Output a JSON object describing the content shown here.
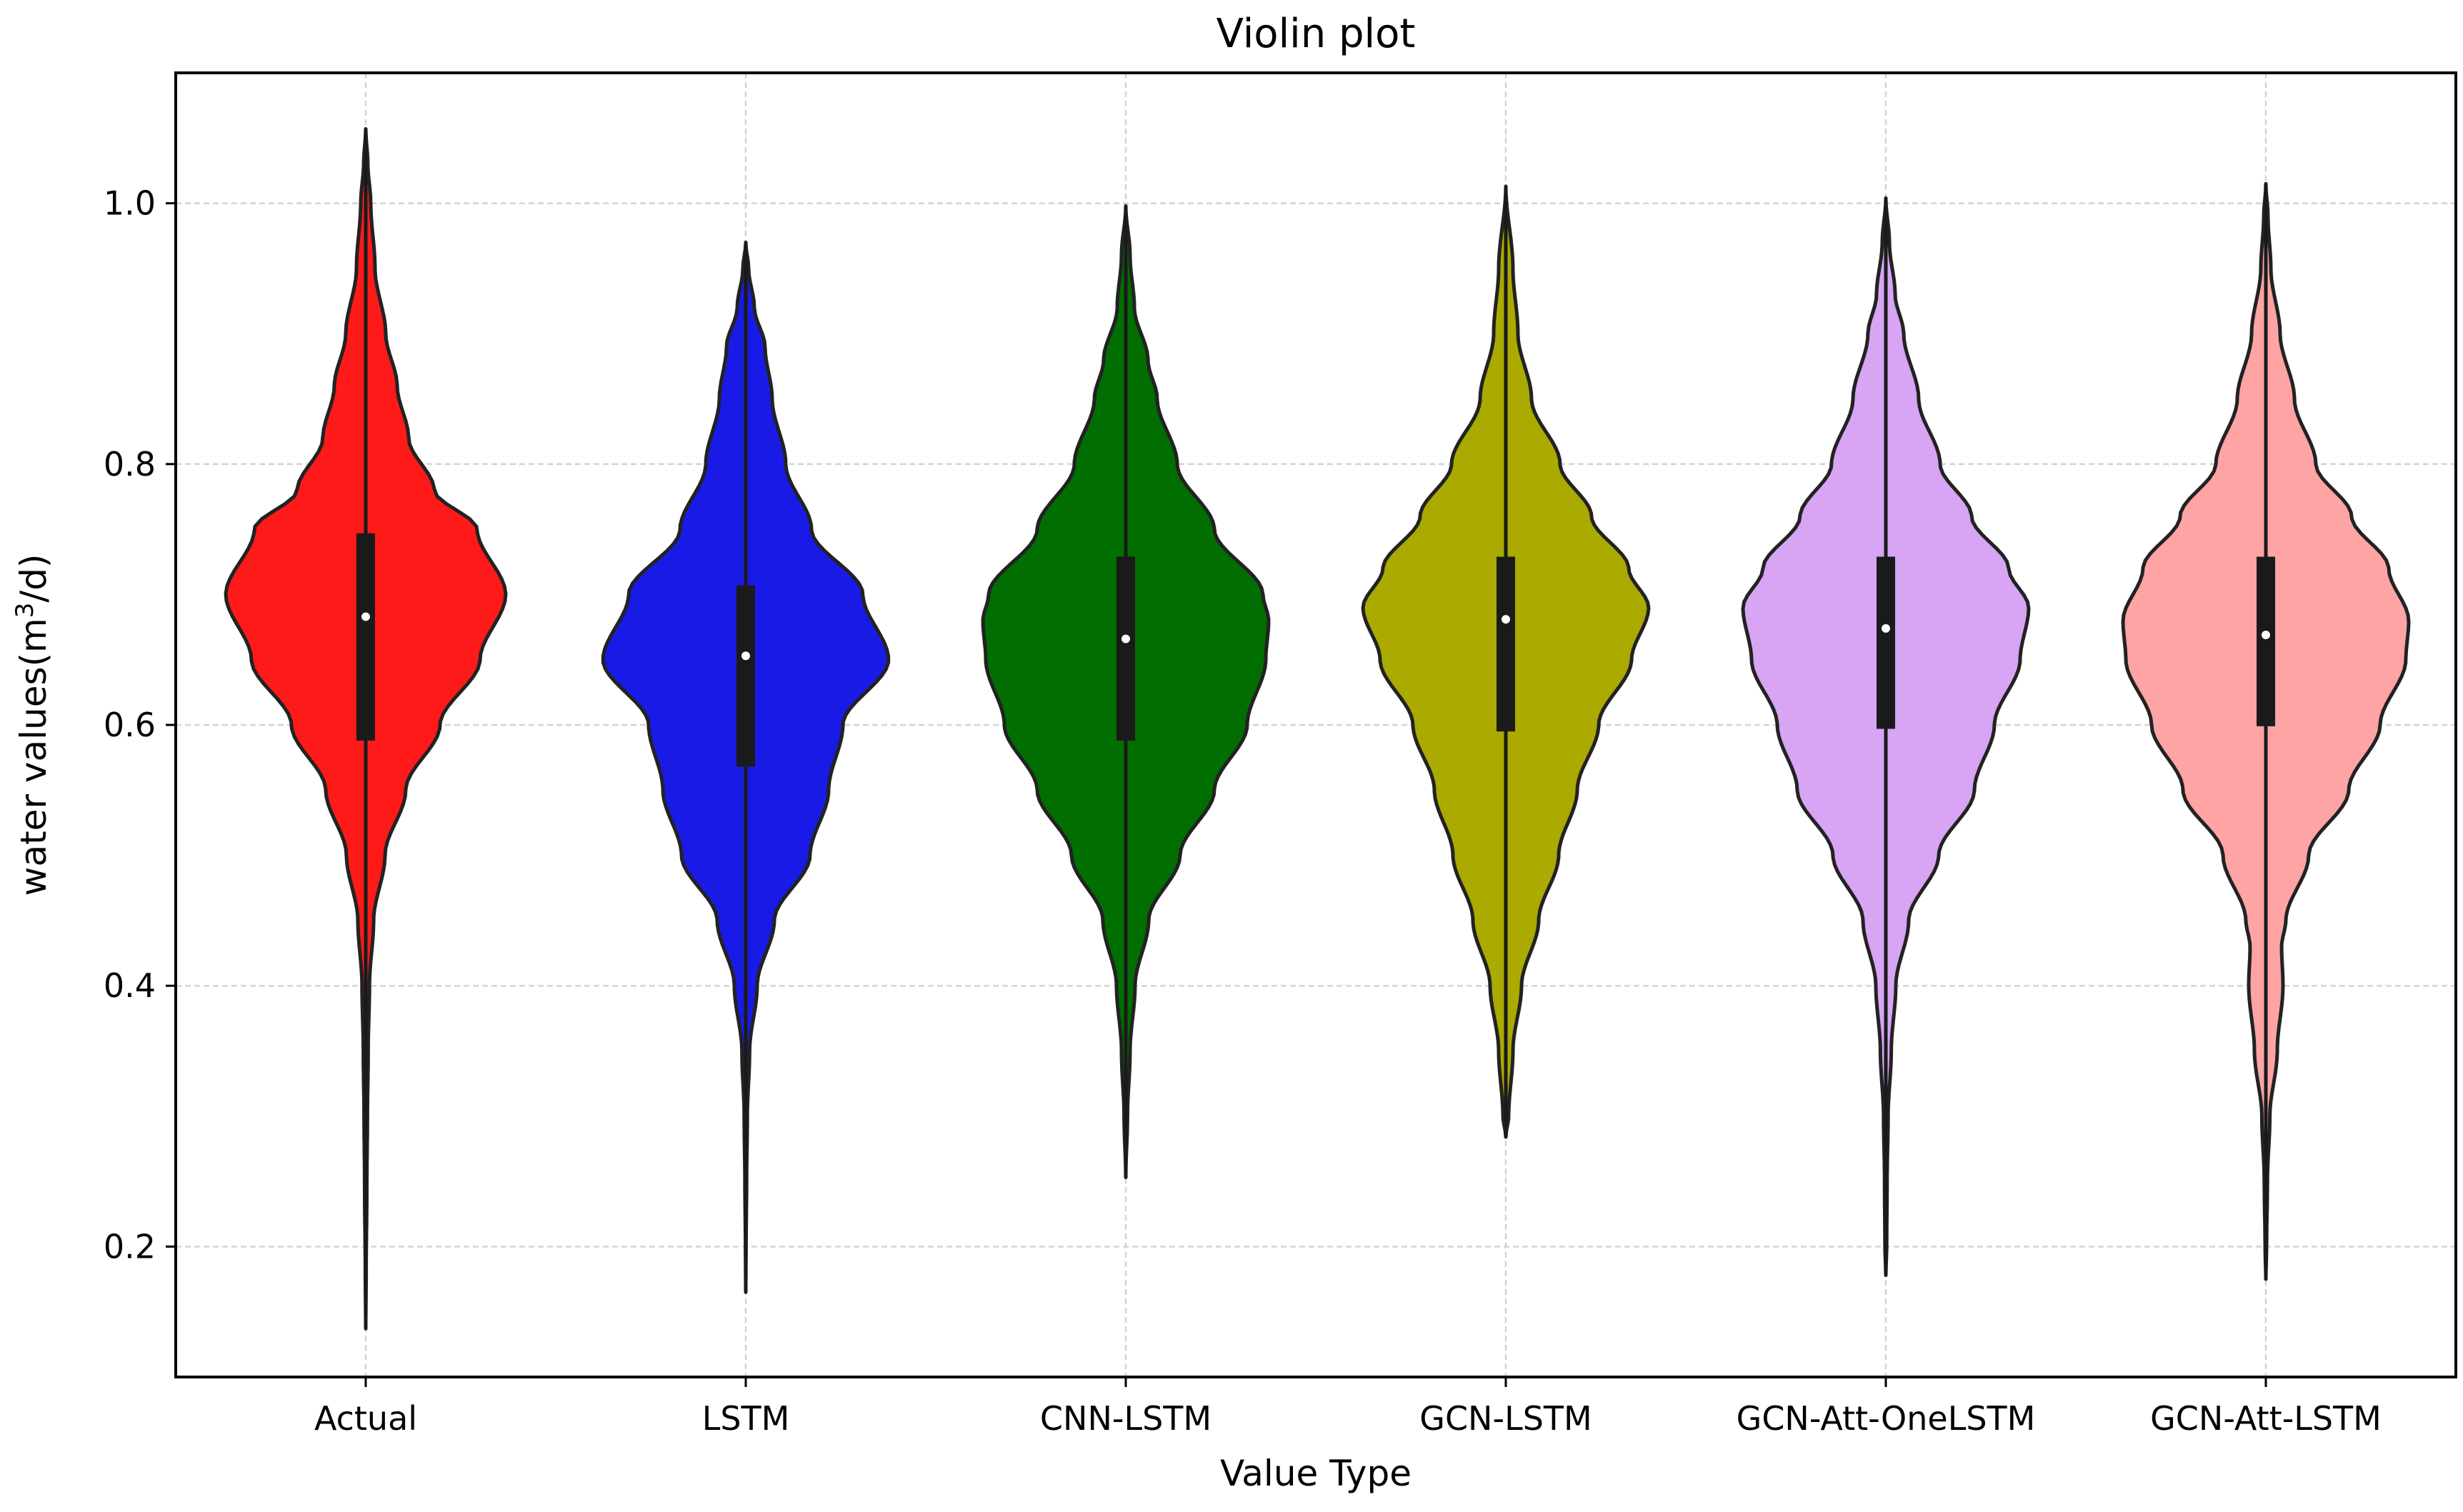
{
  "chart_data": {
    "type": "violin",
    "title": "Violin plot",
    "xlabel": "Value Type",
    "ylabel_prefix": "water values(m",
    "ylabel_sup": "3",
    "ylabel_suffix": "/d)",
    "ylim": [
      0.1,
      1.1
    ],
    "yticks": [
      {
        "value": 0.2,
        "label": "0.2"
      },
      {
        "value": 0.4,
        "label": "0.4"
      },
      {
        "value": 0.6,
        "label": "0.6"
      },
      {
        "value": 0.8,
        "label": "0.8"
      },
      {
        "value": 1.0,
        "label": "1.0"
      }
    ],
    "grid": true,
    "categories": [
      "Actual",
      "LSTM",
      "CNN-LSTM",
      "GCN-LSTM",
      "GCN-Att-OneLSTM",
      "GCN-Att-LSTM"
    ],
    "series": [
      {
        "category": "Actual",
        "color": "#ff1a1a",
        "median": 0.683,
        "q1": 0.588,
        "q3": 0.747,
        "whisker_low": 0.39,
        "whisker_high": 0.96,
        "profile": [
          [
            0.137,
            0.0
          ],
          [
            0.18,
            0.003
          ],
          [
            0.25,
            0.008
          ],
          [
            0.3,
            0.012
          ],
          [
            0.35,
            0.017
          ],
          [
            0.4,
            0.026
          ],
          [
            0.45,
            0.055
          ],
          [
            0.5,
            0.135
          ],
          [
            0.55,
            0.28
          ],
          [
            0.6,
            0.52
          ],
          [
            0.65,
            0.8
          ],
          [
            0.7,
            0.98
          ],
          [
            0.75,
            0.78
          ],
          [
            0.78,
            0.48
          ],
          [
            0.82,
            0.3
          ],
          [
            0.86,
            0.22
          ],
          [
            0.9,
            0.14
          ],
          [
            0.95,
            0.065
          ],
          [
            1.0,
            0.035
          ],
          [
            1.03,
            0.015
          ],
          [
            1.057,
            0.0
          ]
        ]
      },
      {
        "category": "LSTM",
        "color": "#1a1ae6",
        "median": 0.653,
        "q1": 0.568,
        "q3": 0.707,
        "whisker_low": 0.39,
        "whisker_high": 0.89,
        "profile": [
          [
            0.165,
            0.0
          ],
          [
            0.2,
            0.002
          ],
          [
            0.25,
            0.006
          ],
          [
            0.3,
            0.011
          ],
          [
            0.35,
            0.027
          ],
          [
            0.4,
            0.08
          ],
          [
            0.45,
            0.2
          ],
          [
            0.5,
            0.45
          ],
          [
            0.55,
            0.58
          ],
          [
            0.6,
            0.68
          ],
          [
            0.65,
            1.0
          ],
          [
            0.7,
            0.82
          ],
          [
            0.75,
            0.46
          ],
          [
            0.8,
            0.28
          ],
          [
            0.85,
            0.185
          ],
          [
            0.89,
            0.135
          ],
          [
            0.92,
            0.06
          ],
          [
            0.95,
            0.02
          ],
          [
            0.97,
            0.0
          ]
        ]
      },
      {
        "category": "CNN-LSTM",
        "color": "#006e00",
        "median": 0.666,
        "q1": 0.588,
        "q3": 0.729,
        "whisker_low": 0.4,
        "whisker_high": 0.93,
        "profile": [
          [
            0.253,
            0.0
          ],
          [
            0.3,
            0.012
          ],
          [
            0.35,
            0.03
          ],
          [
            0.4,
            0.065
          ],
          [
            0.45,
            0.16
          ],
          [
            0.5,
            0.38
          ],
          [
            0.55,
            0.62
          ],
          [
            0.6,
            0.85
          ],
          [
            0.65,
            0.98
          ],
          [
            0.68,
            1.0
          ],
          [
            0.7,
            0.96
          ],
          [
            0.75,
            0.62
          ],
          [
            0.8,
            0.36
          ],
          [
            0.85,
            0.22
          ],
          [
            0.88,
            0.155
          ],
          [
            0.92,
            0.06
          ],
          [
            0.96,
            0.03
          ],
          [
            0.998,
            0.0
          ]
        ]
      },
      {
        "category": "GCN-LSTM",
        "color": "#aaaa00",
        "median": 0.681,
        "q1": 0.595,
        "q3": 0.729,
        "whisker_low": 0.415,
        "whisker_high": 0.908,
        "profile": [
          [
            0.284,
            0.0
          ],
          [
            0.3,
            0.02
          ],
          [
            0.35,
            0.05
          ],
          [
            0.4,
            0.11
          ],
          [
            0.45,
            0.23
          ],
          [
            0.5,
            0.37
          ],
          [
            0.55,
            0.5
          ],
          [
            0.6,
            0.65
          ],
          [
            0.65,
            0.88
          ],
          [
            0.69,
            1.0
          ],
          [
            0.72,
            0.86
          ],
          [
            0.76,
            0.6
          ],
          [
            0.8,
            0.38
          ],
          [
            0.85,
            0.18
          ],
          [
            0.9,
            0.085
          ],
          [
            0.95,
            0.05
          ],
          [
            1.013,
            0.0
          ]
        ]
      },
      {
        "category": "GCN-Att-OneLSTM",
        "color": "#d8a4f4",
        "median": 0.674,
        "q1": 0.597,
        "q3": 0.729,
        "whisker_low": 0.42,
        "whisker_high": 0.9,
        "profile": [
          [
            0.178,
            0.0
          ],
          [
            0.2,
            0.006
          ],
          [
            0.25,
            0.009
          ],
          [
            0.3,
            0.016
          ],
          [
            0.35,
            0.038
          ],
          [
            0.4,
            0.07
          ],
          [
            0.45,
            0.16
          ],
          [
            0.5,
            0.37
          ],
          [
            0.55,
            0.62
          ],
          [
            0.6,
            0.76
          ],
          [
            0.65,
            0.94
          ],
          [
            0.69,
            1.0
          ],
          [
            0.72,
            0.86
          ],
          [
            0.76,
            0.6
          ],
          [
            0.8,
            0.38
          ],
          [
            0.85,
            0.23
          ],
          [
            0.9,
            0.125
          ],
          [
            0.93,
            0.065
          ],
          [
            0.97,
            0.025
          ],
          [
            1.004,
            0.0
          ]
        ]
      },
      {
        "category": "GCN-Att-LSTM",
        "color": "#ffa4a4",
        "median": 0.669,
        "q1": 0.599,
        "q3": 0.729,
        "whisker_low": 0.425,
        "whisker_high": 0.9,
        "profile": [
          [
            0.175,
            0.0
          ],
          [
            0.2,
            0.005
          ],
          [
            0.25,
            0.011
          ],
          [
            0.3,
            0.028
          ],
          [
            0.35,
            0.08
          ],
          [
            0.4,
            0.12
          ],
          [
            0.43,
            0.11
          ],
          [
            0.45,
            0.14
          ],
          [
            0.5,
            0.3
          ],
          [
            0.55,
            0.58
          ],
          [
            0.6,
            0.8
          ],
          [
            0.65,
            0.98
          ],
          [
            0.68,
            1.0
          ],
          [
            0.72,
            0.86
          ],
          [
            0.76,
            0.6
          ],
          [
            0.8,
            0.35
          ],
          [
            0.85,
            0.2
          ],
          [
            0.9,
            0.1
          ],
          [
            0.95,
            0.035
          ],
          [
            0.99,
            0.015
          ],
          [
            1.015,
            0.0
          ]
        ]
      }
    ]
  }
}
